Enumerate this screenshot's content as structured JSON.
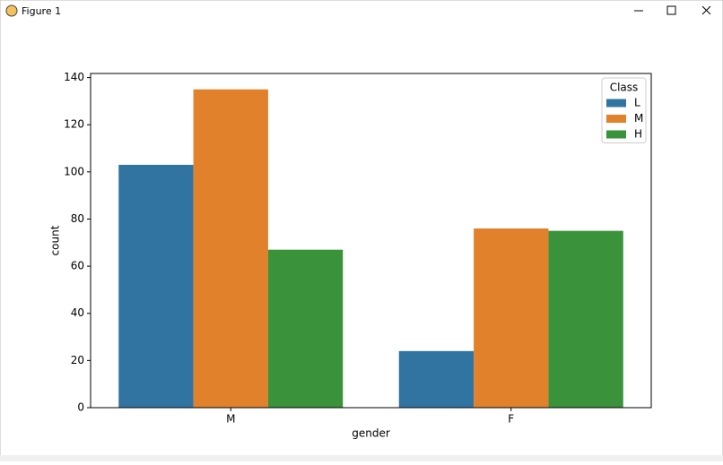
{
  "window": {
    "title": "Figure 1"
  },
  "chart_data": {
    "type": "grouped_bar",
    "xlabel": "gender",
    "ylabel": "count",
    "categories": [
      "M",
      "F"
    ],
    "series": [
      {
        "name": "L",
        "color": "#3274a1",
        "values": [
          103,
          24
        ]
      },
      {
        "name": "M",
        "color": "#e1812c",
        "values": [
          135,
          76
        ]
      },
      {
        "name": "H",
        "color": "#3a923a",
        "values": [
          67,
          75
        ]
      }
    ],
    "legend_title": "Class",
    "legend": "upper right",
    "ylim": [
      0,
      141.75
    ],
    "yticks": [
      0,
      20,
      40,
      60,
      80,
      100,
      120,
      140
    ],
    "grid": false
  }
}
